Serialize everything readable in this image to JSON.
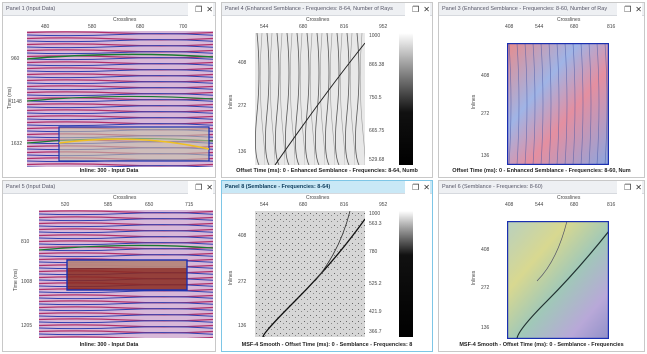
{
  "panels": [
    {
      "title": "Panel 1 (Input Data)",
      "caption": "Inline: 300 - Input Data",
      "xaxis_label": "Crosslines",
      "yaxis_label": "Time (ms)",
      "xticks": [
        "480",
        "580",
        "680",
        "700"
      ],
      "yticks": [
        "960",
        "1148",
        "1632"
      ]
    },
    {
      "title": "Panel 4 (Enhanced Semblance - Frequencies: 8-64, Number of Rays",
      "caption": "Offset Time (ms): 0 - Enhanced Semblance - Frequencies: 8-64, Numb",
      "xaxis_label": "Crosslines",
      "yaxis_label": "Inlines",
      "xticks": [
        "544",
        "680",
        "816",
        "952"
      ],
      "yticks": [
        "408",
        "272",
        "136"
      ],
      "colorbar": [
        "1000",
        "865.38",
        "750.5",
        "665.75",
        "529.68"
      ]
    },
    {
      "title": "Panel 3 (Enhanced Semblance - Frequencies: 8-60, Number of Ray",
      "caption": "Offset Time (ms): 0 - Enhanced Semblance - Frequencies: 8-60, Num",
      "xaxis_label": "Crosslines",
      "yaxis_label": "Inlines",
      "xticks": [
        "408",
        "544",
        "680",
        "816"
      ],
      "yticks": [
        "408",
        "272",
        "136"
      ]
    },
    {
      "title": "Panel 5 (Input Data)",
      "caption": "Inline: 300 - Input Data",
      "xaxis_label": "Crosslines",
      "yaxis_label": "Time (ms)",
      "xticks": [
        "520",
        "585",
        "650",
        "715"
      ],
      "yticks": [
        "810",
        "1008",
        "1205"
      ]
    },
    {
      "title": "Panel 8 (Semblance - Frequencies: 8-64)",
      "caption": "MSF-4 Smooth - Offset Time (ms): 0 - Semblance - Frequencies: 8",
      "xaxis_label": "Crosslines",
      "yaxis_label": "Inlines",
      "xticks": [
        "544",
        "680",
        "816",
        "952"
      ],
      "yticks": [
        "408",
        "272",
        "136"
      ],
      "colorbar": [
        "1000",
        "563.3",
        "780",
        "525.2",
        "421.9",
        "366.7"
      ]
    },
    {
      "title": "Panel 6 (Semblance - Frequencies: 8-60)",
      "caption": "MSF-4 Smooth - Offset Time (ms): 0 - Semblance - Frequencies",
      "xaxis_label": "Crosslines",
      "yaxis_label": "Inlines",
      "xticks": [
        "408",
        "544",
        "680",
        "816"
      ],
      "yticks": [
        "408",
        "272",
        "136"
      ]
    }
  ],
  "icons": {
    "restore": "restore-icon",
    "close": "close-icon"
  },
  "colors": {
    "active_border": "#7ec6e6",
    "highlight_box": "#1a2fb0",
    "title_bg": "#eef0f3"
  }
}
